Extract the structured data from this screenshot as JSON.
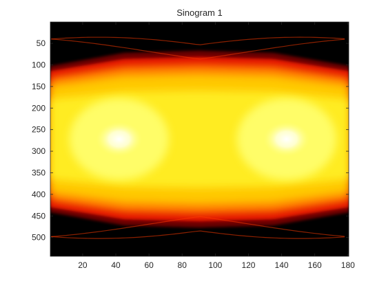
{
  "chart_data": {
    "type": "heatmap",
    "title": "Sinogram 1",
    "xlabel": "",
    "ylabel": "",
    "xlim": [
      0.5,
      180.5
    ],
    "ylim": [
      0.5,
      543.5
    ],
    "y_reversed": true,
    "colormap": "hot",
    "grid": false,
    "x_ticks": [
      20,
      40,
      60,
      80,
      100,
      120,
      140,
      160,
      180
    ],
    "y_ticks": [
      50,
      100,
      150,
      200,
      250,
      300,
      350,
      400,
      450,
      500
    ],
    "intensity_profile": {
      "description_units": "relative intensity 0-1",
      "center_row": 272,
      "half_extent_rows_by_angle": [
        {
          "angle": 1,
          "half_extent": 170
        },
        {
          "angle": 45,
          "half_extent": 200
        },
        {
          "angle": 90,
          "half_extent": 205
        },
        {
          "angle": 135,
          "half_extent": 200
        },
        {
          "angle": 180,
          "half_extent": 170
        }
      ],
      "bright_spots": [
        {
          "angle": 42,
          "row": 272,
          "intensity": 1.0
        },
        {
          "angle": 143,
          "row": 272,
          "intensity": 1.0
        }
      ],
      "crossing_points": [
        {
          "angle": 90,
          "row": 70
        },
        {
          "angle": 90,
          "row": 468
        }
      ]
    }
  }
}
